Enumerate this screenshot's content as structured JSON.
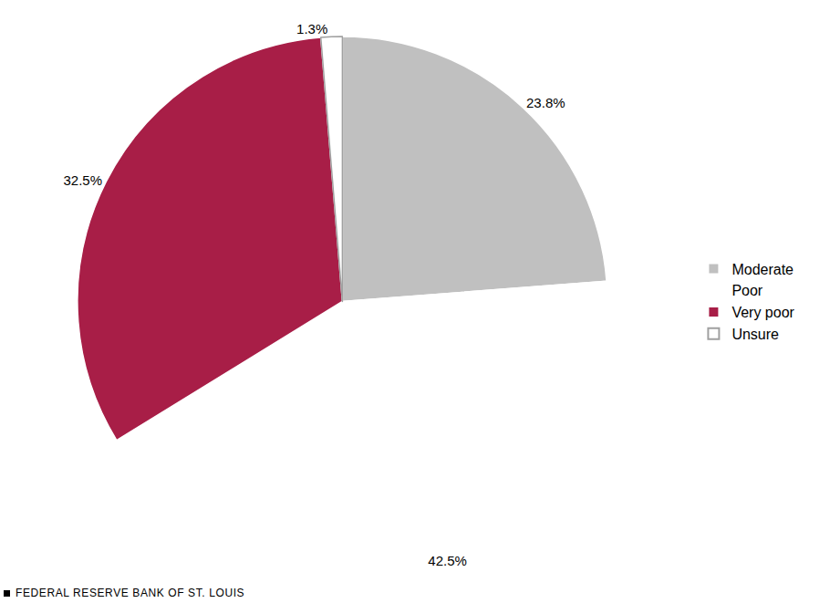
{
  "chart_data": {
    "type": "pie",
    "categories": [
      "Moderate",
      "Poor",
      "Very poor",
      "Unsure"
    ],
    "values": [
      23.8,
      42.5,
      32.5,
      1.3
    ],
    "value_labels": [
      "23.8%",
      "42.5%",
      "32.5%",
      "1.3%"
    ],
    "colors": [
      "#c0c0c0",
      "#a81e47",
      "#a81e47",
      "#ffffff"
    ],
    "data_labels": true,
    "legend": "right",
    "annotations": [
      "FEDERAL RESERVE BANK OF ST. LOUIS"
    ]
  }
}
